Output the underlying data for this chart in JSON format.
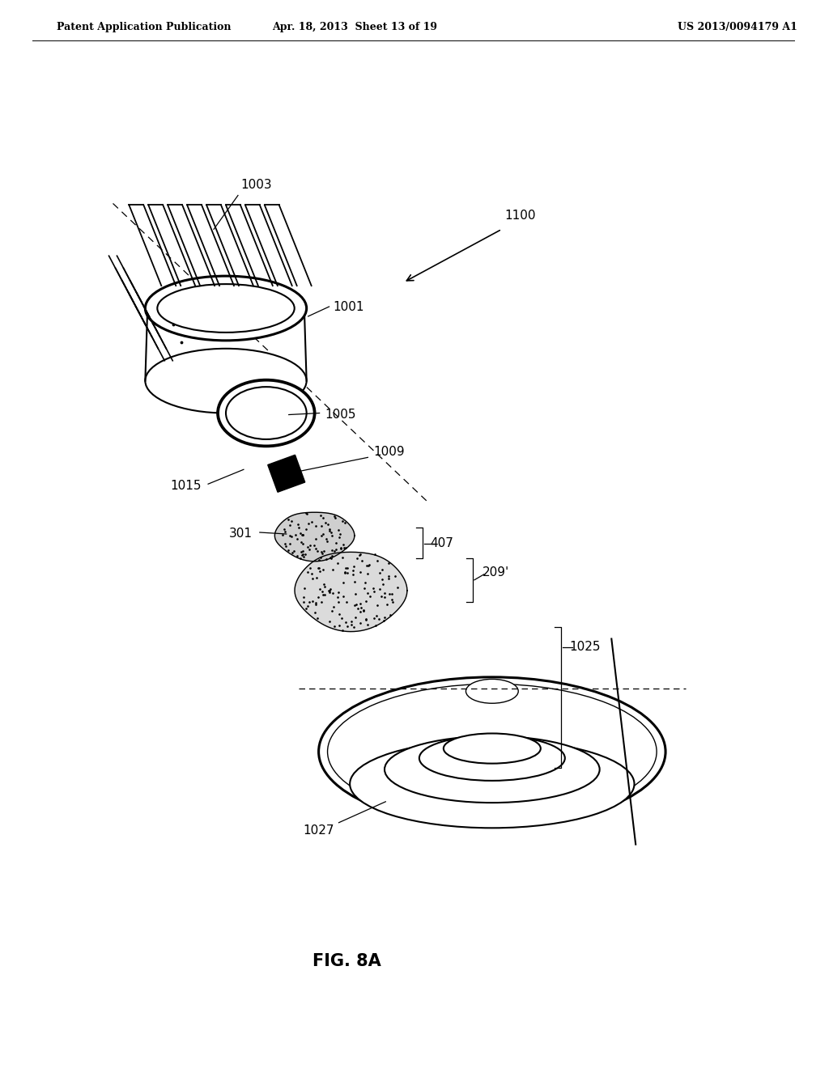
{
  "bg_color": "#ffffff",
  "header_left": "Patent Application Publication",
  "header_mid": "Apr. 18, 2013  Sheet 13 of 19",
  "header_right": "US 2013/0094179 A1",
  "fig_label": "FIG. 8A",
  "line_color": "#000000"
}
